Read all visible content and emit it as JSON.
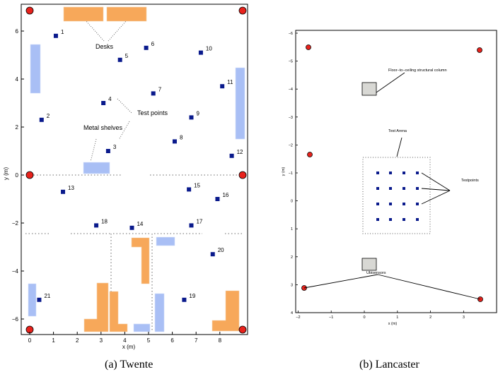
{
  "panel_a": {
    "caption": "(a) Twente",
    "xlabel": "x (m)",
    "ylabel": "y (m)",
    "xticks": [
      "0",
      "1",
      "2",
      "3",
      "4",
      "5",
      "6",
      "7",
      "8"
    ],
    "yticks": [
      "6",
      "4",
      "2",
      "0",
      "−2",
      "−4",
      "−6"
    ],
    "labels": {
      "desks": "Desks",
      "test_points": "Test points",
      "metal_shelves": "Metal shelves"
    },
    "points": [
      {
        "id": "1",
        "x": 1.1,
        "y": 5.8
      },
      {
        "id": "2",
        "x": 0.5,
        "y": 2.3
      },
      {
        "id": "3",
        "x": 3.3,
        "y": 1.0
      },
      {
        "id": "4",
        "x": 3.1,
        "y": 3.0
      },
      {
        "id": "5",
        "x": 3.8,
        "y": 4.8
      },
      {
        "id": "6",
        "x": 4.9,
        "y": 5.3
      },
      {
        "id": "7",
        "x": 5.2,
        "y": 3.4
      },
      {
        "id": "8",
        "x": 6.1,
        "y": 1.4
      },
      {
        "id": "9",
        "x": 6.8,
        "y": 2.4
      },
      {
        "id": "10",
        "x": 7.2,
        "y": 5.1
      },
      {
        "id": "11",
        "x": 8.1,
        "y": 3.7
      },
      {
        "id": "12",
        "x": 8.5,
        "y": 0.8
      },
      {
        "id": "13",
        "x": 1.4,
        "y": -0.7
      },
      {
        "id": "14",
        "x": 4.3,
        "y": -2.2
      },
      {
        "id": "15",
        "x": 6.7,
        "y": -0.6
      },
      {
        "id": "16",
        "x": 7.9,
        "y": -1.0
      },
      {
        "id": "17",
        "x": 6.8,
        "y": -2.1
      },
      {
        "id": "18",
        "x": 2.8,
        "y": -2.1
      },
      {
        "id": "19",
        "x": 6.5,
        "y": -5.2
      },
      {
        "id": "20",
        "x": 7.7,
        "y": -3.3
      },
      {
        "id": "21",
        "x": 0.4,
        "y": -5.2
      }
    ]
  },
  "panel_b": {
    "caption": "(b) Lancaster",
    "xlabel": "x (m)",
    "ylabel": "y (m)",
    "xticks": [
      "−2",
      "−1",
      "0",
      "1",
      "2",
      "3"
    ],
    "yticks": [
      "−6",
      "−5",
      "−4",
      "−3",
      "−2",
      "−1",
      "0",
      "1",
      "2",
      "3",
      "4"
    ],
    "labels": {
      "column": "Floor−to−ceiling structural column",
      "arena": "Test Arena",
      "testpoints": "Testpoints",
      "ubisensors": "Ubisensors"
    }
  }
}
